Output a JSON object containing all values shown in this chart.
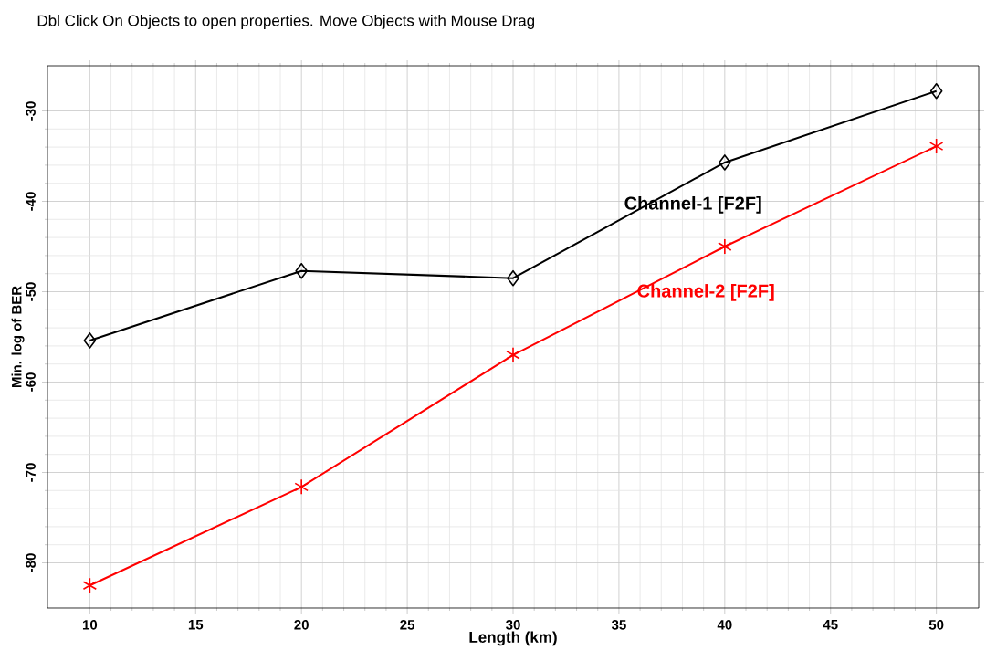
{
  "chart_data": {
    "type": "line",
    "xlabel": "Length (km)",
    "ylabel": "Min. log of BER",
    "annotations": [
      "Dbl Click On Objects to open properties.  Move Objects with Mouse Drag"
    ],
    "x": [
      10,
      20,
      30,
      40,
      50
    ],
    "series": [
      {
        "name": "Channel-1 [F2F]",
        "color": "#000000",
        "marker": "diamond",
        "values": [
          -55.4,
          -47.7,
          -48.5,
          -35.7,
          -27.8
        ]
      },
      {
        "name": "Channel-2 [F2F]",
        "color": "#ff0000",
        "marker": "cross",
        "values": [
          -82.5,
          -71.6,
          -57.0,
          -45.0,
          -33.9
        ]
      }
    ],
    "xlim": [
      8,
      52
    ],
    "ylim": [
      -85,
      -25
    ],
    "xticks": [
      10,
      15,
      20,
      25,
      30,
      35,
      40,
      45,
      50
    ],
    "yticks": [
      -80,
      -70,
      -60,
      -50,
      -40,
      -30
    ],
    "grid": true,
    "legend": false,
    "line_style": "solid"
  }
}
